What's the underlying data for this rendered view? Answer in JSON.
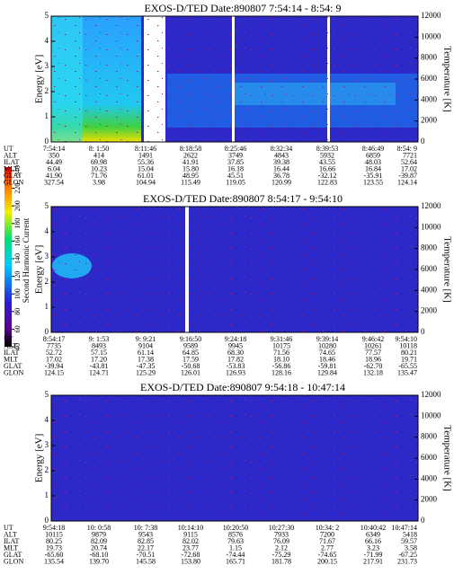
{
  "colorbar": {
    "title": "Second Harmonic Current",
    "ticks": [
      40,
      60,
      80,
      100,
      120,
      140,
      160,
      180,
      200,
      220,
      240
    ]
  },
  "panels": [
    {
      "title": "EXOS-D/TED   Date:890807  7:54:14 - 8:54: 9",
      "y_label": "Energy [eV]",
      "y_ticks": [
        0,
        1,
        2,
        3,
        4,
        5
      ],
      "y2_label": "Temperature [K]",
      "y2_ticks": [
        0,
        2000,
        4000,
        6000,
        8000,
        10000,
        12000
      ],
      "rows": [
        {
          "label": "UT",
          "values": [
            "7:54:14",
            "8: 1:50",
            "8:11:46",
            "8:18:58",
            "8:25:46",
            "8:32:34",
            "8:39:53",
            "8:46:49",
            "8:54: 9"
          ]
        },
        {
          "label": "ALT",
          "values": [
            "350",
            "414",
            "1491",
            "2622",
            "3749",
            "4843",
            "5932",
            "6859",
            "7721"
          ]
        },
        {
          "label": "ILAT",
          "values": [
            "44.49",
            "69.98",
            "55.36",
            "41.91",
            "37.85",
            "39.38",
            "43.55",
            "48.03",
            "52.64"
          ]
        },
        {
          "label": "MLT",
          "values": [
            "6.04",
            "10.23",
            "15.04",
            "15.80",
            "16.18",
            "16.44",
            "16.66",
            "16.84",
            "17.02"
          ]
        },
        {
          "label": "GLAT",
          "values": [
            "41.90",
            "71.76",
            "61.01",
            "48.95",
            "45.51",
            "36.78",
            "-32.12",
            "-35.91",
            "-39.87"
          ]
        },
        {
          "label": "GLON",
          "values": [
            "327.54",
            "3.98",
            "104.94",
            "115.49",
            "119.05",
            "120.99",
            "122.83",
            "123.55",
            "124.14"
          ]
        }
      ]
    },
    {
      "title": "EXOS-D/TED   Date:890807  8:54:17 - 9:54:10",
      "y_label": "Energy [eV]",
      "y_ticks": [
        0,
        1,
        2,
        3,
        4,
        5
      ],
      "y2_label": "Temperature [K]",
      "y2_ticks": [
        0,
        2000,
        4000,
        6000,
        8000,
        10000,
        12000
      ],
      "rows": [
        {
          "label": "UT",
          "values": [
            "8:54:17",
            "9: 1:53",
            "9: 9:21",
            "9:16:50",
            "9:24:18",
            "9:31:46",
            "9:39:14",
            "9:46:42",
            "9:54:10"
          ]
        },
        {
          "label": "ALT",
          "values": [
            "7735",
            "8493",
            "9104",
            "9589",
            "9945",
            "10175",
            "10280",
            "10261",
            "10118"
          ]
        },
        {
          "label": "ILAT",
          "values": [
            "52.72",
            "57.15",
            "61.14",
            "64.85",
            "68.30",
            "71.56",
            "74.65",
            "77.57",
            "80.21"
          ]
        },
        {
          "label": "MLT",
          "values": [
            "17.02",
            "17.20",
            "17.38",
            "17.59",
            "17.82",
            "18.10",
            "18.46",
            "18.96",
            "19.71"
          ]
        },
        {
          "label": "GLAT",
          "values": [
            "-39.94",
            "-43.81",
            "-47.35",
            "-50.68",
            "-53.83",
            "-56.86",
            "-59.81",
            "-62.70",
            "-65.55"
          ]
        },
        {
          "label": "GLON",
          "values": [
            "124.15",
            "124.71",
            "125.29",
            "126.01",
            "126.93",
            "128.16",
            "129.84",
            "132.18",
            "135.47"
          ]
        }
      ]
    },
    {
      "title": "EXOS-D/TED   Date:890807  9:54:18 - 10:47:14",
      "y_label": "Energy [eV]",
      "y_ticks": [
        0,
        1,
        2,
        3,
        4,
        5
      ],
      "y2_label": "Temperature [K]",
      "y2_ticks": [
        0,
        2000,
        4000,
        6000,
        8000,
        10000,
        12000
      ],
      "rows": [
        {
          "label": "UT",
          "values": [
            "9:54:18",
            "10: 0:58",
            "10: 7:38",
            "10:14:10",
            "10:20:50",
            "10:27:30",
            "10:34: 2",
            "10:40:42",
            "10:47:14"
          ]
        },
        {
          "label": "ALT",
          "values": [
            "10115",
            "9879",
            "9543",
            "9115",
            "8576",
            "7933",
            "7200",
            "6349",
            "5418"
          ]
        },
        {
          "label": "ILAT",
          "values": [
            "80.25",
            "82.09",
            "82.85",
            "82.02",
            "79.63",
            "76.09",
            "71.67",
            "66.16",
            "59.57"
          ]
        },
        {
          "label": "MLT",
          "values": [
            "19.73",
            "20.74",
            "22.17",
            "23.77",
            "1.15",
            "2.12",
            "2.77",
            "3.23",
            "3.58"
          ]
        },
        {
          "label": "GLAT",
          "values": [
            "-65.60",
            "-68.10",
            "-70.51",
            "-72.68",
            "-74.44",
            "-75.29",
            "-74.65",
            "-71.99",
            "-67.25"
          ]
        },
        {
          "label": "GLON",
          "values": [
            "135.54",
            "139.70",
            "145.58",
            "153.80",
            "165.71",
            "181.78",
            "200.15",
            "217.91",
            "231.73"
          ]
        }
      ]
    }
  ]
}
